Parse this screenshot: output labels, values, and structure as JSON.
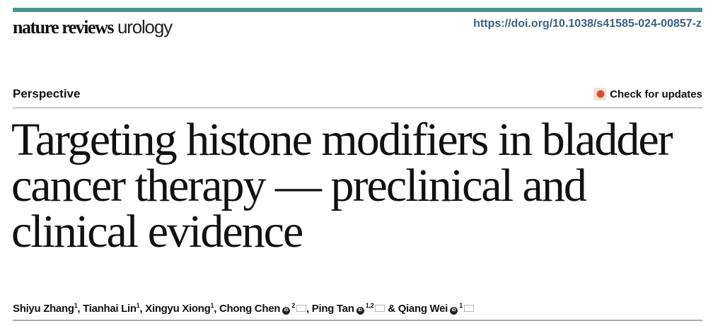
{
  "header": {
    "brand_color": "#4b958e",
    "journal_bold": "nature reviews",
    "journal_light": "urology",
    "doi": "https://doi.org/10.1038/s41585-024-00857-z"
  },
  "article_type": "Perspective",
  "check_updates": {
    "label": "Check for updates",
    "icon": "crossmark-icon"
  },
  "title": "Targeting histone modifiers in bladder cancer therapy — preclinical and clinical evidence",
  "authors": [
    {
      "name": "Shiyu Zhang",
      "aff": "1",
      "orcid": false,
      "mail": false,
      "sep": ", "
    },
    {
      "name": "Tianhai Lin",
      "aff": "1",
      "orcid": false,
      "mail": false,
      "sep": ", "
    },
    {
      "name": "Xingyu Xiong",
      "aff": "1",
      "orcid": false,
      "mail": false,
      "sep": ", "
    },
    {
      "name": "Chong Chen",
      "aff": "2",
      "orcid": true,
      "mail": true,
      "sep": ", "
    },
    {
      "name": "Ping Tan",
      "aff": "1,2",
      "orcid": true,
      "mail": true,
      "sep": " & "
    },
    {
      "name": "Qiang Wei",
      "aff": "1",
      "orcid": true,
      "mail": true,
      "sep": ""
    }
  ]
}
